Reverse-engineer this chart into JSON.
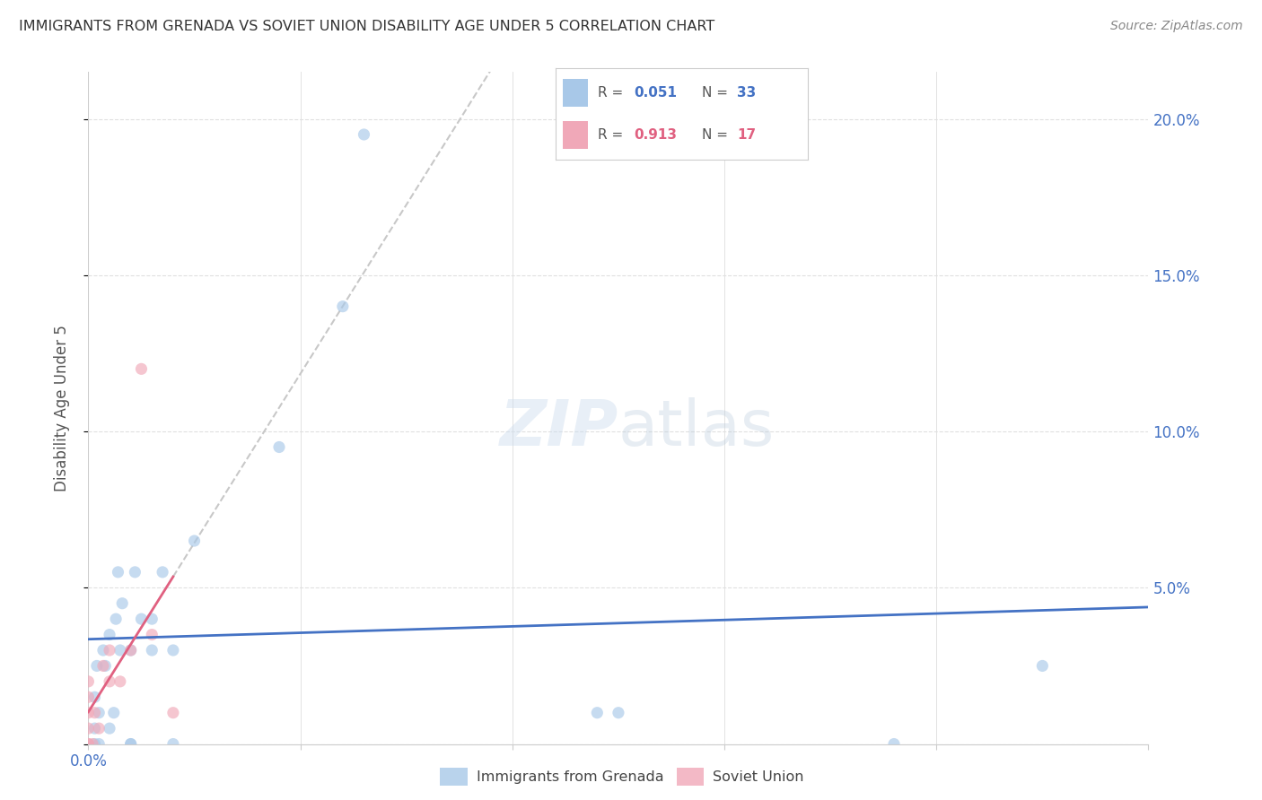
{
  "title": "IMMIGRANTS FROM GRENADA VS SOVIET UNION DISABILITY AGE UNDER 5 CORRELATION CHART",
  "source": "Source: ZipAtlas.com",
  "ylabel": "Disability Age Under 5",
  "ytick_values": [
    0.0,
    0.05,
    0.1,
    0.15,
    0.2
  ],
  "ytick_labels": [
    "",
    "5.0%",
    "10.0%",
    "15.0%",
    "20.0%"
  ],
  "xlim": [
    0.0,
    0.05
  ],
  "ylim": [
    0.0,
    0.215
  ],
  "grenada_x": [
    0.0003,
    0.0003,
    0.0003,
    0.0004,
    0.0005,
    0.0005,
    0.0007,
    0.0008,
    0.001,
    0.001,
    0.0012,
    0.0013,
    0.0014,
    0.0015,
    0.0016,
    0.002,
    0.002,
    0.002,
    0.0022,
    0.0025,
    0.003,
    0.003,
    0.0035,
    0.004,
    0.004,
    0.005,
    0.009,
    0.012,
    0.013,
    0.024,
    0.025,
    0.038,
    0.045
  ],
  "grenada_y": [
    0.0,
    0.005,
    0.015,
    0.025,
    0.0,
    0.01,
    0.03,
    0.025,
    0.005,
    0.035,
    0.01,
    0.04,
    0.055,
    0.03,
    0.045,
    0.0,
    0.0,
    0.03,
    0.055,
    0.04,
    0.04,
    0.03,
    0.055,
    0.0,
    0.03,
    0.065,
    0.095,
    0.14,
    0.195,
    0.01,
    0.01,
    0.0,
    0.025
  ],
  "soviet_x": [
    0.0,
    0.0,
    0.0,
    0.0,
    0.0,
    0.0,
    0.0002,
    0.0003,
    0.0005,
    0.0007,
    0.001,
    0.001,
    0.0015,
    0.002,
    0.0025,
    0.003,
    0.004
  ],
  "soviet_y": [
    0.0,
    0.0,
    0.005,
    0.01,
    0.015,
    0.02,
    0.0,
    0.01,
    0.005,
    0.025,
    0.02,
    0.03,
    0.02,
    0.03,
    0.12,
    0.035,
    0.01
  ],
  "grenada_color": "#a8c8e8",
  "soviet_color": "#f0a8b8",
  "grenada_line_color": "#4472c4",
  "soviet_line_color": "#e06080",
  "trendline_extend_color": "#c8c8c8",
  "background_color": "#ffffff",
  "grid_color": "#e0e0e0",
  "title_color": "#333333",
  "axis_label_color": "#4472c4",
  "marker_size": 90,
  "marker_alpha": 0.65
}
